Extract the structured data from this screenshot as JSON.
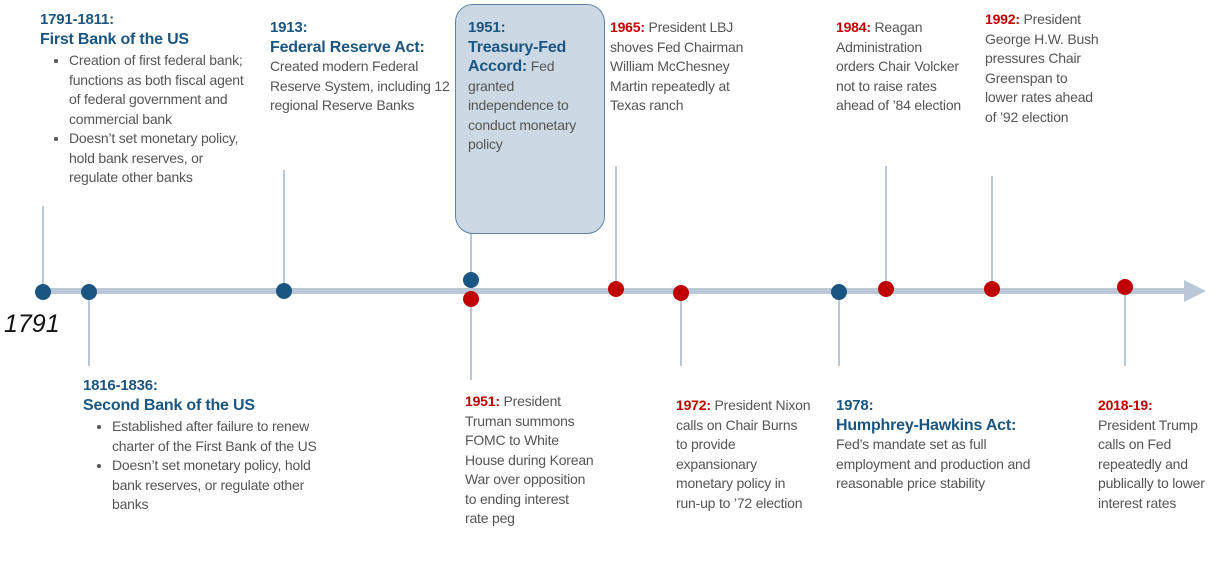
{
  "start_label": "1791",
  "events": [
    {
      "date": "1791-1811:",
      "title": "First Bank of the US",
      "bullets": [
        "Creation of first federal bank; functions as both fiscal agent of federal government and commercial bank",
        "Doesn’t set monetary policy, hold bank reserves, or regulate other banks"
      ]
    },
    {
      "date": "1816-1836:",
      "title": "Second Bank of the US",
      "bullets": [
        "Established after failure to renew charter of the First Bank of the US",
        "Doesn’t set monetary policy, hold bank reserves, or regulate other banks"
      ]
    },
    {
      "date": "1913:",
      "title": "Federal Reserve Act:",
      "text": "Created modern Federal Reserve System, including 12 regional Reserve Banks"
    },
    {
      "date": "1951:",
      "title": "Treasury-Fed Accord:",
      "text": "Fed granted independence to conduct monetary policy"
    },
    {
      "date": "1951:",
      "text": "President Truman summons FOMC to White House during Korean War over opposition to ending interest rate peg"
    },
    {
      "date": "1965:",
      "text": "President LBJ shoves Fed Chairman William McChesney Martin repeatedly at Texas ranch"
    },
    {
      "date": "1972:",
      "text": "President Nixon calls on Chair Burns to provide expansionary monetary policy in run-up to ’72 election"
    },
    {
      "date": "1978:",
      "title": "Humphrey-Hawkins Act:",
      "text": "Fed’s mandate set as full employment and production and reasonable price stability"
    },
    {
      "date": "1984:",
      "text": "Reagan Administration orders Chair Volcker not to raise rates ahead of ’84 election"
    },
    {
      "date": "1992:",
      "text": "President George H.W. Bush pressures Chair Greenspan to lower rates ahead of ’92 election"
    },
    {
      "date": "2018-19:",
      "text": "President Trump calls on Fed repeatedly and publically to lower interest rates"
    }
  ]
}
